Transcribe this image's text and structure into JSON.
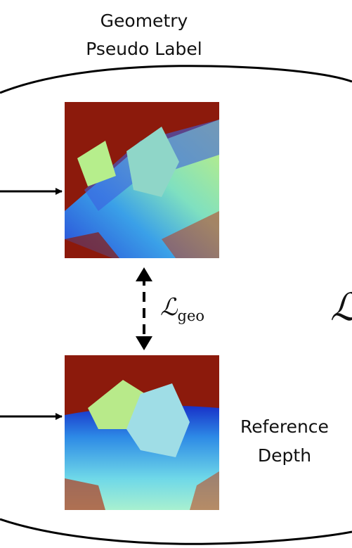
{
  "header": {
    "lines": [
      "Geometry",
      "Pseudo Label"
    ]
  },
  "loss_label": {
    "symbol": "ℒ",
    "subscript": "geo"
  },
  "reference_label": {
    "lines": [
      "Reference",
      "Depth"
    ]
  },
  "edge_symbol": "ℒ"
}
